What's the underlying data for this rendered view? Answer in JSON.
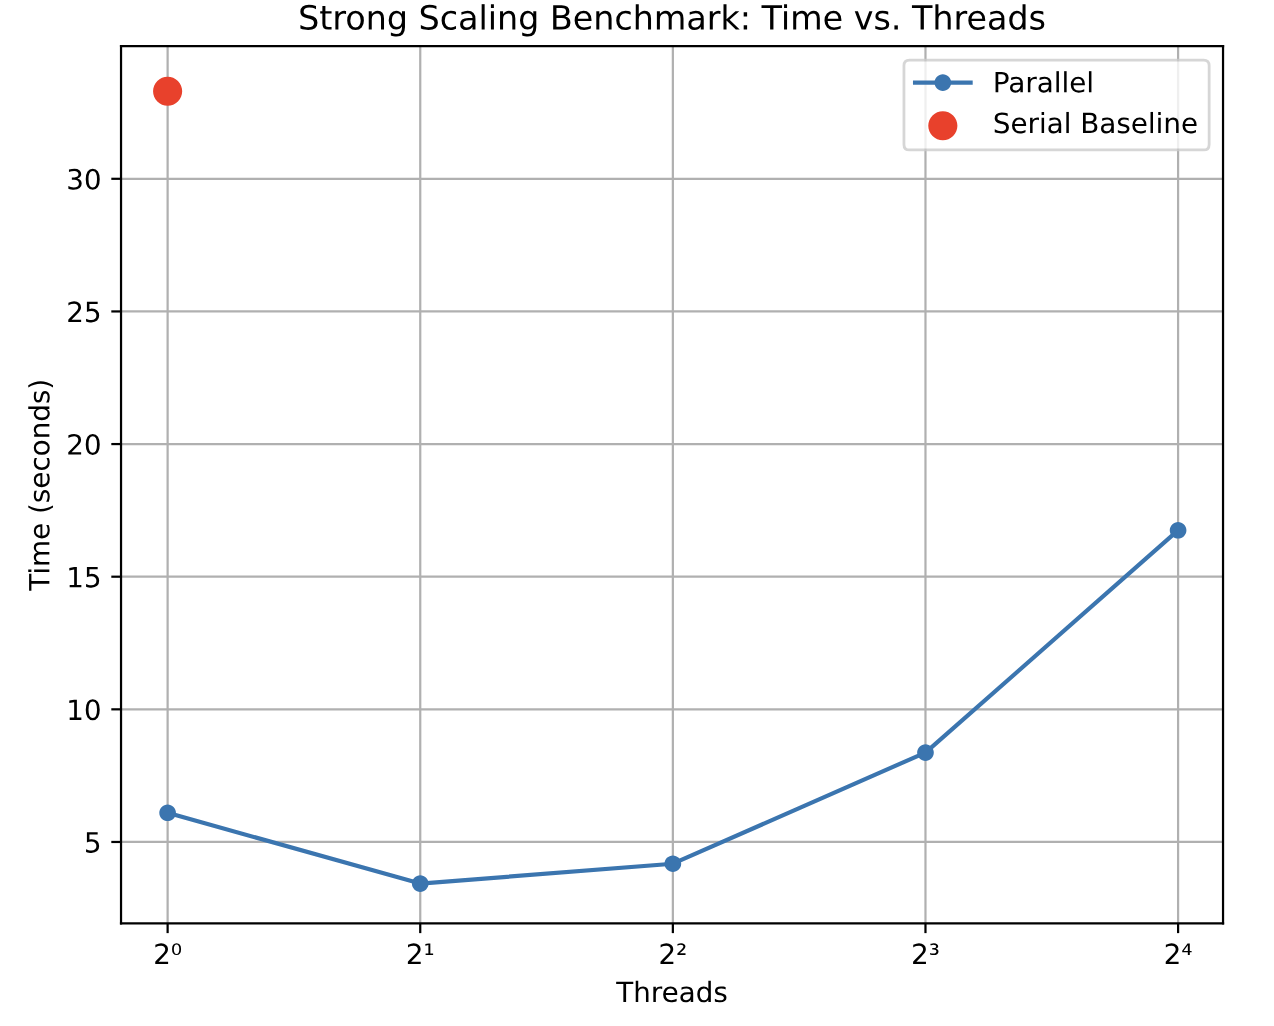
{
  "chart_data": {
    "type": "line",
    "title": "Strong Scaling Benchmark: Time vs. Threads",
    "xlabel": "Threads",
    "ylabel": "Time (seconds)",
    "log": "x",
    "series": [
      {
        "name": "Parallel",
        "color": "#3b75af",
        "x": [
          1,
          2,
          4,
          8,
          16
        ],
        "values": [
          6.1,
          3.43,
          4.18,
          8.37,
          16.75
        ],
        "marker": "circle"
      },
      {
        "name": "Serial Baseline",
        "type": "scatter",
        "color": "#e8412c",
        "x": [
          1
        ],
        "values": [
          33.3
        ],
        "marker": "circle"
      }
    ],
    "xlim": [
      0.88,
      18.1
    ],
    "xticks": [
      {
        "value": 1,
        "label": "2⁰"
      },
      {
        "value": 2,
        "label": "2¹"
      },
      {
        "value": 4,
        "label": "2²"
      },
      {
        "value": 8,
        "label": "2³"
      },
      {
        "value": 16,
        "label": "2⁴"
      }
    ],
    "ylim": [
      1.93,
      35.0
    ],
    "yticks": [
      5,
      10,
      15,
      20,
      25,
      30
    ],
    "grid": true,
    "legend": "top right"
  }
}
